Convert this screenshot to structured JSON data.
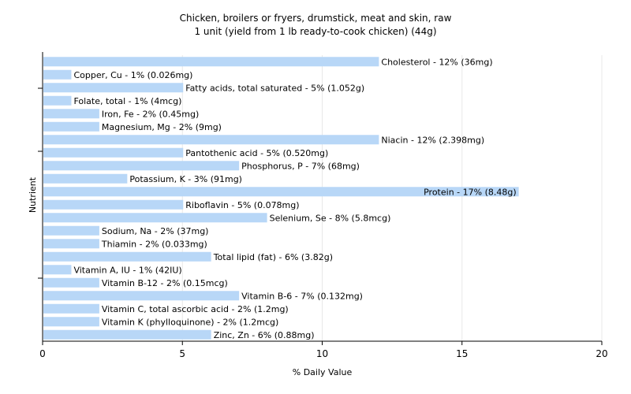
{
  "chart_data": {
    "type": "bar",
    "orientation": "horizontal",
    "title": "Chicken, broilers or fryers, drumstick, meat and skin, raw",
    "subtitle": "1 unit (yield from 1 lb ready-to-cook chicken) (44g)",
    "xlabel": "% Daily Value",
    "ylabel": "Nutrient",
    "xlim": [
      0,
      20
    ],
    "xticks": [
      "0",
      "5",
      "10",
      "15",
      "20"
    ],
    "grid": true,
    "bar_color": "#b8d7f7",
    "categories": [
      "Cholesterol",
      "Copper, Cu",
      "Fatty acids, total saturated",
      "Folate, total",
      "Iron, Fe",
      "Magnesium, Mg",
      "Niacin",
      "Pantothenic acid",
      "Phosphorus, P",
      "Potassium, K",
      "Protein",
      "Riboflavin",
      "Selenium, Se",
      "Sodium, Na",
      "Thiamin",
      "Total lipid (fat)",
      "Vitamin A, IU",
      "Vitamin B-12",
      "Vitamin B-6",
      "Vitamin C, total ascorbic acid",
      "Vitamin K (phylloquinone)",
      "Zinc, Zn"
    ],
    "values": [
      12,
      1,
      5,
      1,
      2,
      2,
      12,
      5,
      7,
      3,
      17,
      5,
      8,
      2,
      2,
      6,
      1,
      2,
      7,
      2,
      2,
      6
    ],
    "labels": [
      "Cholesterol - 12% (36mg)",
      "Copper, Cu - 1% (0.026mg)",
      "Fatty acids, total saturated - 5% (1.052g)",
      "Folate, total - 1% (4mcg)",
      "Iron, Fe - 2% (0.45mg)",
      "Magnesium, Mg - 2% (9mg)",
      "Niacin - 12% (2.398mg)",
      "Pantothenic acid - 5% (0.520mg)",
      "Phosphorus, P - 7% (68mg)",
      "Potassium, K - 3% (91mg)",
      "Protein - 17% (8.48g)",
      "Riboflavin - 5% (0.078mg)",
      "Selenium, Se - 8% (5.8mcg)",
      "Sodium, Na - 2% (37mg)",
      "Thiamin - 2% (0.033mg)",
      "Total lipid (fat) - 6% (3.82g)",
      "Vitamin A, IU - 1% (42IU)",
      "Vitamin B-12 - 2% (0.15mcg)",
      "Vitamin B-6 - 7% (0.132mg)",
      "Vitamin C, total ascorbic acid - 2% (1.2mg)",
      "Vitamin K (phylloquinone) - 2% (1.2mcg)",
      "Zinc, Zn - 6% (0.88mg)"
    ]
  }
}
